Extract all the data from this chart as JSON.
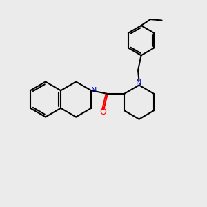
{
  "bg_color": "#ebebeb",
  "bond_color": "#000000",
  "N_color": "#0000cc",
  "O_color": "#ff0000",
  "line_width": 1.5,
  "fig_width": 3.0,
  "fig_height": 3.0,
  "dpi": 100,
  "xlim": [
    0,
    10
  ],
  "ylim": [
    0,
    10
  ]
}
